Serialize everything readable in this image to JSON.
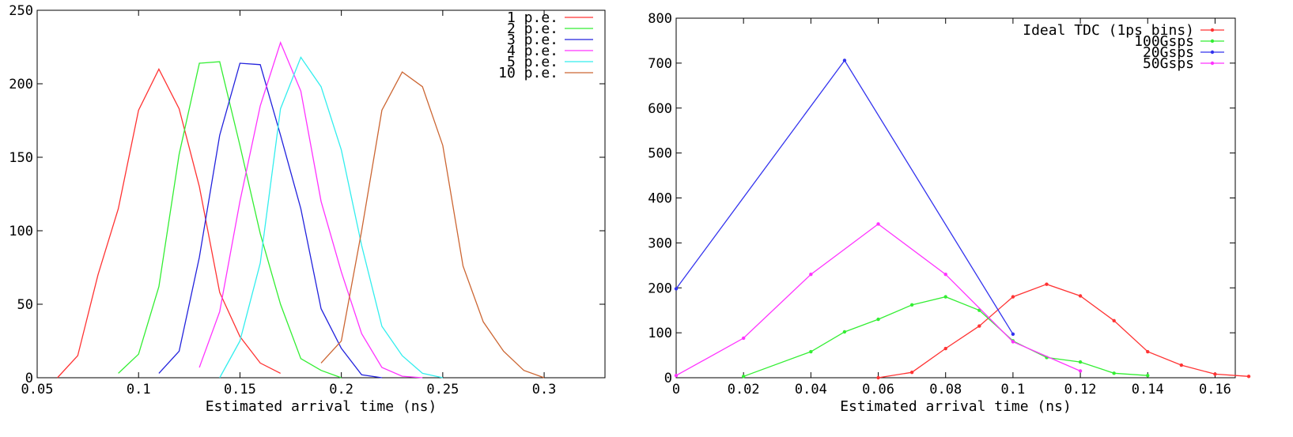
{
  "chart_data": [
    {
      "type": "line",
      "title": "",
      "xlabel": "Estimated arrival time (ns)",
      "ylabel": "",
      "xlim": [
        0.05,
        0.33
      ],
      "ylim": [
        0,
        250
      ],
      "xticks": [
        "0.05",
        "0.1",
        "0.15",
        "0.2",
        "0.25",
        "0.3"
      ],
      "yticks": [
        "0",
        "50",
        "100",
        "150",
        "200",
        "250"
      ],
      "grid": false,
      "legend_position": "top-right",
      "series": [
        {
          "name": "1 p.e.",
          "color": "#ff3333",
          "markers": false,
          "x": [
            0.06,
            0.07,
            0.08,
            0.09,
            0.1,
            0.11,
            0.12,
            0.13,
            0.14,
            0.15,
            0.16,
            0.17
          ],
          "y": [
            0,
            15,
            70,
            115,
            182,
            210,
            183,
            130,
            58,
            28,
            10,
            3
          ]
        },
        {
          "name": "2 p.e.",
          "color": "#33ee33",
          "markers": false,
          "x": [
            0.09,
            0.1,
            0.11,
            0.12,
            0.13,
            0.14,
            0.15,
            0.16,
            0.17,
            0.18,
            0.19,
            0.2
          ],
          "y": [
            3,
            16,
            62,
            152,
            214,
            215,
            158,
            98,
            50,
            13,
            5,
            0
          ]
        },
        {
          "name": "3 p.e.",
          "color": "#2222dd",
          "markers": false,
          "x": [
            0.11,
            0.12,
            0.13,
            0.14,
            0.15,
            0.16,
            0.17,
            0.18,
            0.19,
            0.2,
            0.21,
            0.22
          ],
          "y": [
            3,
            18,
            82,
            165,
            214,
            213,
            165,
            115,
            47,
            20,
            2,
            0
          ]
        },
        {
          "name": "4 p.e.",
          "color": "#ff33ff",
          "markers": false,
          "x": [
            0.13,
            0.14,
            0.15,
            0.16,
            0.17,
            0.18,
            0.19,
            0.2,
            0.21,
            0.22,
            0.23,
            0.24
          ],
          "y": [
            7,
            45,
            120,
            185,
            228,
            195,
            120,
            72,
            30,
            7,
            1,
            0
          ]
        },
        {
          "name": "5 p.e.",
          "color": "#33eeee",
          "markers": false,
          "x": [
            0.14,
            0.15,
            0.16,
            0.17,
            0.18,
            0.19,
            0.2,
            0.21,
            0.22,
            0.23,
            0.24,
            0.25
          ],
          "y": [
            0,
            25,
            78,
            183,
            218,
            198,
            155,
            90,
            35,
            15,
            3,
            0
          ]
        },
        {
          "name": "10 p.e.",
          "color": "#cc6633",
          "markers": false,
          "x": [
            0.19,
            0.2,
            0.21,
            0.22,
            0.23,
            0.24,
            0.25,
            0.26,
            0.27,
            0.28,
            0.29,
            0.3
          ],
          "y": [
            10,
            25,
            100,
            182,
            208,
            198,
            158,
            76,
            38,
            18,
            5,
            0
          ]
        }
      ]
    },
    {
      "type": "line",
      "title": "",
      "xlabel": "Estimated arrival time (ns)",
      "ylabel": "",
      "xlim": [
        0,
        0.166
      ],
      "ylim": [
        0,
        800
      ],
      "xticks": [
        "0",
        "0.02",
        "0.04",
        "0.06",
        "0.08",
        "0.1",
        "0.12",
        "0.14",
        "0.16"
      ],
      "yticks": [
        "0",
        "100",
        "200",
        "300",
        "400",
        "500",
        "600",
        "700",
        "800"
      ],
      "grid": false,
      "legend_position": "top-right",
      "series": [
        {
          "name": "Ideal TDC (1ps bins)",
          "color": "#ff3333",
          "markers": true,
          "x": [
            0.06,
            0.07,
            0.08,
            0.09,
            0.1,
            0.11,
            0.12,
            0.13,
            0.14,
            0.15,
            0.16,
            0.17
          ],
          "y": [
            0,
            12,
            65,
            115,
            180,
            208,
            182,
            127,
            58,
            28,
            8,
            3
          ]
        },
        {
          "name": "100Gsps",
          "color": "#33ee33",
          "markers": true,
          "x": [
            0.02,
            0.04,
            0.05,
            0.06,
            0.07,
            0.08,
            0.09,
            0.1,
            0.11,
            0.12,
            0.13,
            0.14
          ],
          "y": [
            3,
            58,
            102,
            130,
            162,
            180,
            150,
            82,
            45,
            35,
            10,
            5
          ]
        },
        {
          "name": "20Gsps",
          "color": "#3333ee",
          "markers": true,
          "x": [
            0,
            0.05,
            0.1
          ],
          "y": [
            198,
            706,
            97
          ]
        },
        {
          "name": "50Gsps",
          "color": "#ff33ff",
          "markers": true,
          "x": [
            0,
            0.02,
            0.04,
            0.06,
            0.08,
            0.1,
            0.12
          ],
          "y": [
            5,
            88,
            230,
            342,
            230,
            80,
            15
          ]
        }
      ]
    }
  ]
}
